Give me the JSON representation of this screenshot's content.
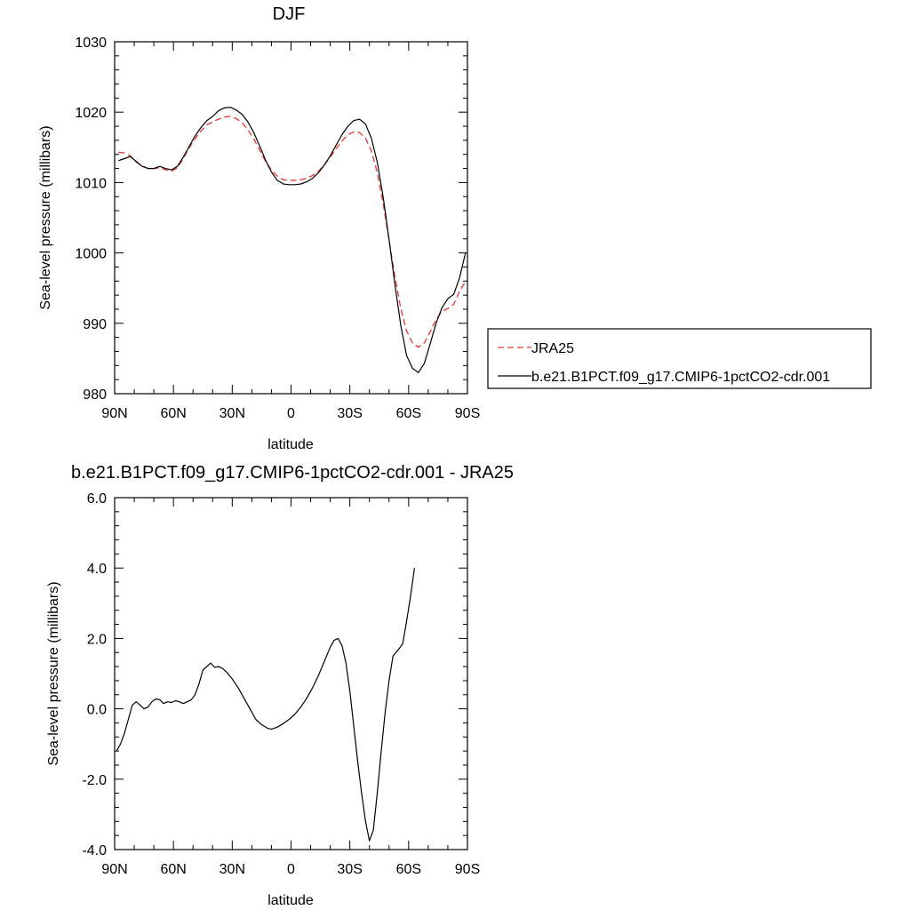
{
  "chart_data": [
    {
      "type": "line",
      "title": "DJF",
      "xlabel": "latitude",
      "ylabel": "Sea-level pressure (millibars)",
      "xlim": [
        90,
        -90
      ],
      "ylim": [
        980,
        1030
      ],
      "x_ticks": [
        90,
        60,
        30,
        0,
        -30,
        -60,
        -90
      ],
      "x_tick_labels": [
        "90N",
        "60N",
        "30N",
        "0",
        "30S",
        "60S",
        "90S"
      ],
      "y_ticks": [
        980,
        990,
        1000,
        1010,
        1020,
        1030
      ],
      "y_tick_labels": [
        "980",
        "990",
        "1000",
        "1010",
        "1020",
        "1030"
      ],
      "legend_position": "right",
      "series": [
        {
          "name": "JRA25",
          "color": "#e8362f",
          "dash": "dashed",
          "points": [
            [
              88,
              1014.3
            ],
            [
              85,
              1014.2
            ],
            [
              82,
              1013.8
            ],
            [
              79,
              1012.9
            ],
            [
              76,
              1012.4
            ],
            [
              73,
              1012.0
            ],
            [
              70,
              1012.0
            ],
            [
              67,
              1012.1
            ],
            [
              64,
              1011.8
            ],
            [
              61,
              1011.6
            ],
            [
              58,
              1012.1
            ],
            [
              55,
              1013.4
            ],
            [
              52,
              1014.9
            ],
            [
              49,
              1016.2
            ],
            [
              46,
              1017.3
            ],
            [
              43,
              1018.2
            ],
            [
              40,
              1018.6
            ],
            [
              37,
              1019.0
            ],
            [
              34,
              1019.3
            ],
            [
              31,
              1019.4
            ],
            [
              28,
              1019.1
            ],
            [
              25,
              1018.5
            ],
            [
              22,
              1017.5
            ],
            [
              19,
              1016.2
            ],
            [
              16,
              1014.6
            ],
            [
              13,
              1013.0
            ],
            [
              10,
              1011.8
            ],
            [
              7,
              1010.9
            ],
            [
              4,
              1010.4
            ],
            [
              1,
              1010.3
            ],
            [
              -2,
              1010.3
            ],
            [
              -5,
              1010.4
            ],
            [
              -8,
              1010.6
            ],
            [
              -11,
              1011.0
            ],
            [
              -14,
              1011.6
            ],
            [
              -17,
              1012.5
            ],
            [
              -20,
              1013.6
            ],
            [
              -23,
              1014.8
            ],
            [
              -26,
              1015.9
            ],
            [
              -29,
              1016.8
            ],
            [
              -32,
              1017.2
            ],
            [
              -35,
              1017.1
            ],
            [
              -38,
              1016.3
            ],
            [
              -41,
              1014.5
            ],
            [
              -44,
              1011.4
            ],
            [
              -47,
              1007.0
            ],
            [
              -50,
              1001.8
            ],
            [
              -53,
              996.6
            ],
            [
              -56,
              992.1
            ],
            [
              -59,
              988.9
            ],
            [
              -62,
              987.2
            ],
            [
              -65,
              986.6
            ],
            [
              -68,
              987.2
            ],
            [
              -71,
              988.8
            ],
            [
              -74,
              990.5
            ],
            [
              -77,
              991.7
            ],
            [
              -80,
              992.1
            ],
            [
              -83,
              992.7
            ],
            [
              -86,
              994.6
            ],
            [
              -89,
              995.9
            ]
          ]
        },
        {
          "name": "b.e21.B1PCT.f09_g17.CMIP6-1pctCO2-cdr.001",
          "color": "#000000",
          "dash": "solid",
          "points": [
            [
              88,
              1013.1
            ],
            [
              85,
              1013.4
            ],
            [
              82,
              1013.7
            ],
            [
              79,
              1013.0
            ],
            [
              76,
              1012.3
            ],
            [
              73,
              1012.0
            ],
            [
              70,
              1012.0
            ],
            [
              67,
              1012.3
            ],
            [
              64,
              1012.0
            ],
            [
              61,
              1011.8
            ],
            [
              58,
              1012.3
            ],
            [
              55,
              1013.6
            ],
            [
              52,
              1015.1
            ],
            [
              49,
              1016.6
            ],
            [
              46,
              1017.8
            ],
            [
              43,
              1018.8
            ],
            [
              40,
              1019.4
            ],
            [
              37,
              1020.2
            ],
            [
              34,
              1020.6
            ],
            [
              31,
              1020.7
            ],
            [
              28,
              1020.3
            ],
            [
              25,
              1019.7
            ],
            [
              22,
              1018.6
            ],
            [
              19,
              1017.1
            ],
            [
              16,
              1015.2
            ],
            [
              13,
              1013.2
            ],
            [
              10,
              1011.5
            ],
            [
              7,
              1010.3
            ],
            [
              4,
              1009.8
            ],
            [
              1,
              1009.7
            ],
            [
              -2,
              1009.7
            ],
            [
              -5,
              1009.8
            ],
            [
              -8,
              1010.1
            ],
            [
              -11,
              1010.6
            ],
            [
              -14,
              1011.4
            ],
            [
              -17,
              1012.5
            ],
            [
              -20,
              1013.8
            ],
            [
              -23,
              1015.3
            ],
            [
              -26,
              1016.8
            ],
            [
              -29,
              1018.0
            ],
            [
              -32,
              1018.8
            ],
            [
              -35,
              1019.0
            ],
            [
              -38,
              1018.3
            ],
            [
              -41,
              1016.3
            ],
            [
              -44,
              1012.9
            ],
            [
              -47,
              1007.9
            ],
            [
              -50,
              1001.9
            ],
            [
              -53,
              995.5
            ],
            [
              -56,
              989.7
            ],
            [
              -59,
              985.4
            ],
            [
              -62,
              983.6
            ],
            [
              -65,
              983.0
            ],
            [
              -68,
              984.3
            ],
            [
              -71,
              987.1
            ],
            [
              -74,
              990.0
            ],
            [
              -77,
              992.2
            ],
            [
              -80,
              993.5
            ],
            [
              -83,
              994.1
            ],
            [
              -86,
              996.5
            ],
            [
              -89,
              1000.0
            ]
          ]
        }
      ]
    },
    {
      "type": "line",
      "title": "b.e21.B1PCT.f09_g17.CMIP6-1pctCO2-cdr.001 - JRA25",
      "xlabel": "latitude",
      "ylabel": "Sea-level pressure (millibars)",
      "xlim": [
        90,
        -90
      ],
      "ylim": [
        -4,
        6
      ],
      "x_ticks": [
        90,
        60,
        30,
        0,
        -30,
        -60,
        -90
      ],
      "x_tick_labels": [
        "90N",
        "60N",
        "30N",
        "0",
        "30S",
        "60S",
        "90S"
      ],
      "y_ticks": [
        -4,
        -2,
        0,
        2,
        4,
        6
      ],
      "y_tick_labels": [
        "-4.0",
        "-2.0",
        "0.0",
        "2.0",
        "4.0",
        "6.0"
      ],
      "series": [
        {
          "color": "#000000",
          "dash": "solid",
          "points": [
            [
              89,
              -1.2
            ],
            [
              87,
              -1.0
            ],
            [
              85,
              -0.7
            ],
            [
              83,
              -0.3
            ],
            [
              81,
              0.1
            ],
            [
              79,
              0.2
            ],
            [
              77,
              0.1
            ],
            [
              75,
              0.0
            ],
            [
              73,
              0.05
            ],
            [
              71,
              0.2
            ],
            [
              69,
              0.28
            ],
            [
              67,
              0.26
            ],
            [
              65,
              0.15
            ],
            [
              63,
              0.2
            ],
            [
              61,
              0.18
            ],
            [
              59,
              0.23
            ],
            [
              57,
              0.2
            ],
            [
              55,
              0.15
            ],
            [
              53,
              0.2
            ],
            [
              51,
              0.25
            ],
            [
              49,
              0.4
            ],
            [
              47,
              0.7
            ],
            [
              45,
              1.1
            ],
            [
              43,
              1.2
            ],
            [
              41,
              1.3
            ],
            [
              39,
              1.18
            ],
            [
              37,
              1.2
            ],
            [
              35,
              1.15
            ],
            [
              33,
              1.05
            ],
            [
              30,
              0.85
            ],
            [
              27,
              0.6
            ],
            [
              24,
              0.3
            ],
            [
              21,
              0.0
            ],
            [
              18,
              -0.3
            ],
            [
              15,
              -0.45
            ],
            [
              12,
              -0.55
            ],
            [
              10,
              -0.58
            ],
            [
              7,
              -0.52
            ],
            [
              4,
              -0.42
            ],
            [
              1,
              -0.3
            ],
            [
              -2,
              -0.15
            ],
            [
              -5,
              0.05
            ],
            [
              -8,
              0.3
            ],
            [
              -11,
              0.6
            ],
            [
              -14,
              0.95
            ],
            [
              -17,
              1.35
            ],
            [
              -20,
              1.75
            ],
            [
              -22,
              1.95
            ],
            [
              -24,
              2.0
            ],
            [
              -26,
              1.8
            ],
            [
              -28,
              1.3
            ],
            [
              -30,
              0.5
            ],
            [
              -32,
              -0.5
            ],
            [
              -34,
              -1.5
            ],
            [
              -36,
              -2.4
            ],
            [
              -38,
              -3.2
            ],
            [
              -40,
              -3.75
            ],
            [
              -42,
              -3.45
            ],
            [
              -44,
              -2.4
            ],
            [
              -46,
              -1.2
            ],
            [
              -48,
              -0.1
            ],
            [
              -50,
              0.8
            ],
            [
              -52,
              1.5
            ],
            [
              -55,
              1.7
            ],
            [
              -57,
              1.85
            ],
            [
              -59,
              2.5
            ],
            [
              -61,
              3.2
            ],
            [
              -63,
              4.0
            ]
          ]
        }
      ]
    }
  ]
}
